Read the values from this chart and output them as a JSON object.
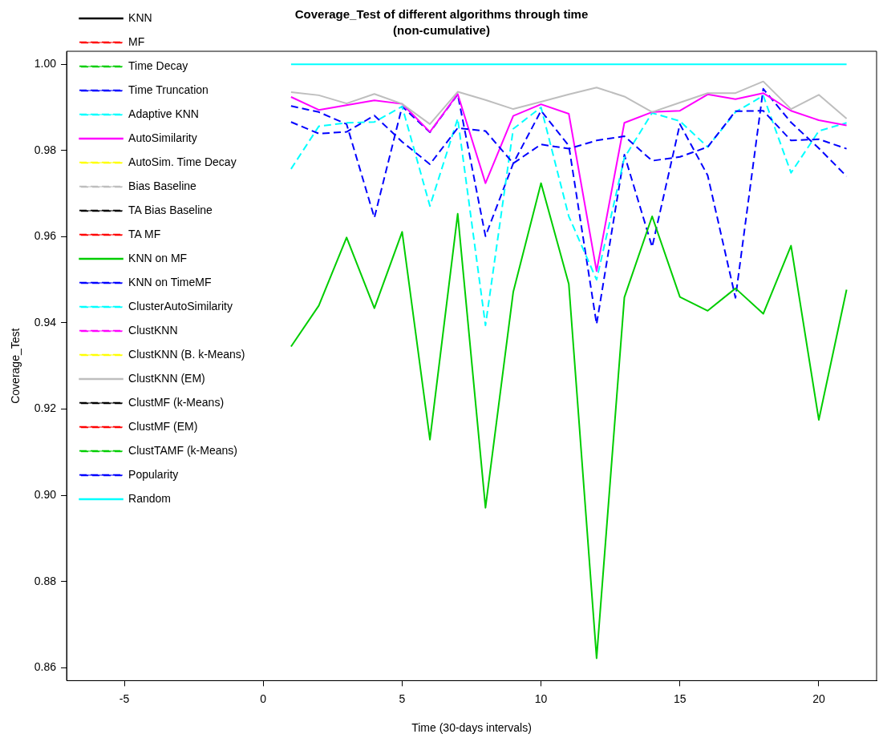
{
  "chart_data": {
    "type": "line",
    "title": "Coverage_Test of different algorithms through time",
    "subtitle": "(non-cumulative)",
    "xlabel": "Time (30-days intervals)",
    "ylabel": "Coverage_Test",
    "x": [
      1,
      2,
      3,
      4,
      5,
      6,
      7,
      8,
      9,
      10,
      11,
      12,
      13,
      14,
      15,
      16,
      17,
      18,
      19,
      20,
      21
    ],
    "xlim": [
      -7.08,
      22.08
    ],
    "xticks": [
      -5,
      0,
      5,
      10,
      15,
      20
    ],
    "ylim": [
      0.857,
      1.003
    ],
    "yticks": [
      0.86,
      0.88,
      {
        "value": 0.9,
        "label": "0.90"
      },
      0.92,
      0.94,
      0.96,
      0.98,
      {
        "value": 1,
        "label": "1.00"
      }
    ],
    "legend": "top left",
    "marker": "none",
    "series": [
      {
        "name": "KNN",
        "color": "#000000",
        "line_style": "solid",
        "values": [
          null,
          null,
          null,
          null,
          null,
          null,
          null,
          null,
          null,
          null,
          null,
          null,
          null,
          null,
          null,
          null,
          null,
          null,
          null,
          null,
          null
        ]
      },
      {
        "name": "MF",
        "color": "#ff0000",
        "line_style": "dashed",
        "values": [
          null,
          null,
          null,
          null,
          null,
          null,
          null,
          null,
          null,
          null,
          null,
          null,
          null,
          null,
          null,
          null,
          null,
          null,
          null,
          null,
          null
        ]
      },
      {
        "name": "Time Decay",
        "color": "#00cd00",
        "line_style": "dashed",
        "values": [
          null,
          null,
          null,
          null,
          null,
          null,
          null,
          null,
          null,
          null,
          null,
          null,
          null,
          null,
          null,
          null,
          null,
          null,
          null,
          null,
          null
        ]
      },
      {
        "name": "Time Truncation",
        "color": "#0000ff",
        "line_style": "dashed",
        "values": [
          0.9903,
          0.9889,
          0.9861,
          0.9644,
          0.9902,
          0.9842,
          0.993,
          0.9601,
          0.977,
          0.9892,
          0.9811,
          0.9397,
          0.979,
          0.9576,
          0.9861,
          0.9742,
          0.9458,
          0.9943,
          0.9865,
          0.9805,
          0.974
        ]
      },
      {
        "name": "Adaptive KNN",
        "color": "#00ffff",
        "line_style": "dashed",
        "values": [
          0.9757,
          0.9856,
          0.9864,
          0.9866,
          0.9902,
          0.9671,
          0.9874,
          0.9394,
          0.985,
          0.99,
          0.9647,
          0.95,
          0.9783,
          0.9887,
          0.9868,
          0.9808,
          0.9889,
          0.9927,
          0.9748,
          0.9845,
          0.9864
        ]
      },
      {
        "name": "AutoSimilarity",
        "color": "#ff00ff",
        "line_style": "solid",
        "values": [
          0.9924,
          0.9894,
          0.9905,
          0.9916,
          0.9908,
          0.9843,
          0.9931,
          0.9724,
          0.988,
          0.9907,
          0.9885,
          0.952,
          0.9864,
          0.9889,
          0.9892,
          0.993,
          0.9919,
          0.9933,
          0.9892,
          0.987,
          0.9858
        ]
      },
      {
        "name": "AutoSim. Time Decay",
        "color": "#ffff00",
        "line_style": "dashed",
        "values": [
          null,
          null,
          null,
          null,
          null,
          null,
          null,
          null,
          null,
          null,
          null,
          null,
          null,
          null,
          null,
          null,
          null,
          null,
          null,
          null,
          null
        ]
      },
      {
        "name": "Bias Baseline",
        "color": "#bebebe",
        "line_style": "dashed",
        "values": [
          null,
          null,
          null,
          null,
          null,
          null,
          null,
          null,
          null,
          null,
          null,
          null,
          null,
          null,
          null,
          null,
          null,
          null,
          null,
          null,
          null
        ]
      },
      {
        "name": "TA Bias Baseline",
        "color": "#000000",
        "line_style": "dashed",
        "values": [
          null,
          null,
          null,
          null,
          null,
          null,
          null,
          null,
          null,
          null,
          null,
          null,
          null,
          null,
          null,
          null,
          null,
          null,
          null,
          null,
          null
        ]
      },
      {
        "name": "TA MF",
        "color": "#ff0000",
        "line_style": "dashed",
        "values": [
          null,
          null,
          null,
          null,
          null,
          null,
          null,
          null,
          null,
          null,
          null,
          null,
          null,
          null,
          null,
          null,
          null,
          null,
          null,
          null,
          null
        ]
      },
      {
        "name": "KNN on MF",
        "color": "#00cd00",
        "line_style": "solid",
        "values": [
          0.9345,
          0.944,
          0.9598,
          0.9434,
          0.9611,
          0.9129,
          0.9653,
          0.8971,
          0.9472,
          0.9724,
          0.949,
          0.8622,
          0.9459,
          0.9647,
          0.946,
          0.9428,
          0.948,
          0.9421,
          0.9579,
          0.9175,
          0.9477
        ]
      },
      {
        "name": "KNN on TimeMF",
        "color": "#0000ff",
        "line_style": "dashed",
        "values": [
          0.9866,
          0.9839,
          0.9843,
          0.9881,
          0.982,
          0.9768,
          0.9852,
          0.9845,
          0.977,
          0.9814,
          0.9804,
          0.9823,
          0.9833,
          0.9776,
          0.9785,
          0.9808,
          0.9891,
          0.9892,
          0.9823,
          0.9826,
          0.9804
        ]
      },
      {
        "name": "ClusterAutoSimilarity",
        "color": "#00ffff",
        "line_style": "dashed",
        "values": [
          null,
          null,
          null,
          null,
          null,
          null,
          null,
          null,
          null,
          null,
          null,
          null,
          null,
          null,
          null,
          null,
          null,
          null,
          null,
          null,
          null
        ]
      },
      {
        "name": "ClustKNN",
        "color": "#ff00ff",
        "line_style": "dashed",
        "values": [
          null,
          null,
          null,
          null,
          null,
          null,
          null,
          null,
          null,
          null,
          null,
          null,
          null,
          null,
          null,
          null,
          null,
          null,
          null,
          null,
          null
        ]
      },
      {
        "name": "ClustKNN (B. k-Means)",
        "color": "#ffff00",
        "line_style": "dashed",
        "values": [
          null,
          null,
          null,
          null,
          null,
          null,
          null,
          null,
          null,
          null,
          null,
          null,
          null,
          null,
          null,
          null,
          null,
          null,
          null,
          null,
          null
        ]
      },
      {
        "name": "ClustKNN (EM)",
        "color": "#bebebe",
        "line_style": "solid",
        "values": [
          0.9935,
          0.9928,
          0.9909,
          0.9931,
          0.9908,
          0.9861,
          0.9936,
          0.9917,
          0.9896,
          0.9913,
          0.993,
          0.9946,
          0.9925,
          0.9889,
          0.9911,
          0.9933,
          0.9933,
          0.996,
          0.9896,
          0.9929,
          0.9874
        ]
      },
      {
        "name": "ClustMF (k-Means)",
        "color": "#000000",
        "line_style": "dashed",
        "values": [
          null,
          null,
          null,
          null,
          null,
          null,
          null,
          null,
          null,
          null,
          null,
          null,
          null,
          null,
          null,
          null,
          null,
          null,
          null,
          null,
          null
        ]
      },
      {
        "name": "ClustMF (EM)",
        "color": "#ff0000",
        "line_style": "dashed",
        "values": [
          null,
          null,
          null,
          null,
          null,
          null,
          null,
          null,
          null,
          null,
          null,
          null,
          null,
          null,
          null,
          null,
          null,
          null,
          null,
          null,
          null
        ]
      },
      {
        "name": "ClustTAMF (k-Means)",
        "color": "#00cd00",
        "line_style": "dashed",
        "values": [
          null,
          null,
          null,
          null,
          null,
          null,
          null,
          null,
          null,
          null,
          null,
          null,
          null,
          null,
          null,
          null,
          null,
          null,
          null,
          null,
          null
        ]
      },
      {
        "name": "Popularity",
        "color": "#0000ff",
        "line_style": "dashed",
        "values": [
          null,
          null,
          null,
          null,
          null,
          null,
          null,
          null,
          null,
          null,
          null,
          null,
          null,
          null,
          null,
          null,
          null,
          null,
          null,
          null,
          null
        ]
      },
      {
        "name": "Random",
        "color": "#00ffff",
        "line_style": "solid",
        "values": [
          1,
          1,
          1,
          1,
          1,
          1,
          1,
          1,
          1,
          1,
          1,
          1,
          1,
          1,
          1,
          1,
          1,
          1,
          1,
          1,
          1
        ]
      }
    ]
  }
}
